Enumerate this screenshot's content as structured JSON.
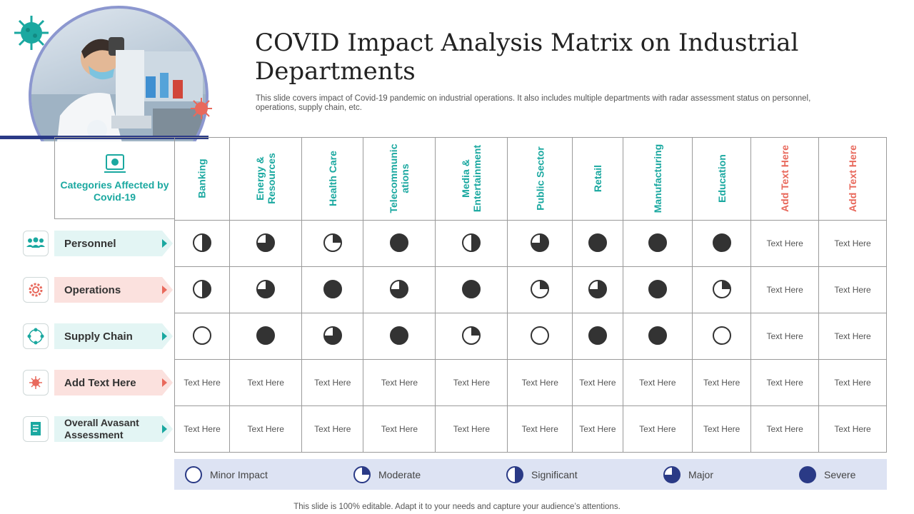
{
  "title": "COVID Impact Analysis Matrix on Industrial Departments",
  "subtitle": "This slide covers impact of Covid-19 pandemic on industrial operations. It also includes multiple departments with radar assessment status on personnel, operations, supply chain, etc.",
  "categories_label": "Categories Affected by Covid-19",
  "columns": [
    {
      "label": "Banking",
      "color": "#1aa8a0"
    },
    {
      "label": "Energy & Resources",
      "color": "#1aa8a0"
    },
    {
      "label": "Health Care",
      "color": "#1aa8a0"
    },
    {
      "label": "Telecommunic ations",
      "color": "#1aa8a0"
    },
    {
      "label": "Media & Entertainment",
      "color": "#1aa8a0"
    },
    {
      "label": "Public Sector",
      "color": "#1aa8a0"
    },
    {
      "label": "Retail",
      "color": "#1aa8a0"
    },
    {
      "label": "Manufacturing",
      "color": "#1aa8a0"
    },
    {
      "label": "Education",
      "color": "#1aa8a0"
    },
    {
      "label": "Add Text Here",
      "color": "#e8695c"
    },
    {
      "label": "Add Text Here",
      "color": "#e8695c"
    }
  ],
  "rows": [
    {
      "label": "Personnel",
      "icon": "people-icon",
      "cells": [
        0.5,
        0.75,
        0.25,
        1,
        0.5,
        0.75,
        1,
        1,
        1,
        "Text Here",
        "Text Here"
      ]
    },
    {
      "label": "Operations",
      "icon": "gear-icon",
      "cells": [
        0.5,
        0.75,
        1,
        0.75,
        1,
        0.25,
        0.75,
        1,
        0.25,
        "Text Here",
        "Text Here"
      ]
    },
    {
      "label": "Supply Chain",
      "icon": "network-icon",
      "cells": [
        0,
        1,
        0.75,
        1,
        0.25,
        0,
        1,
        1,
        0,
        "Text Here",
        "Text Here"
      ]
    },
    {
      "label": "Add  Text Here",
      "icon": "virus-icon",
      "cells": [
        "Text Here",
        "Text Here",
        "Text Here",
        "Text Here",
        "Text Here",
        "Text Here",
        "Text Here",
        "Text Here",
        "Text Here",
        "Text Here",
        "Text Here"
      ]
    },
    {
      "label": "Overall Avasant Assessment",
      "icon": "report-icon",
      "cells": [
        "Text Here",
        "Text Here",
        "Text Here",
        "Text Here",
        "Text Here",
        "Text Here",
        "Text Here",
        "Text Here",
        "Text Here",
        "Text Here",
        "Text Here"
      ]
    }
  ],
  "legend": [
    {
      "label": "Minor Impact",
      "level": 0
    },
    {
      "label": "Moderate",
      "level": 0.25
    },
    {
      "label": "Significant",
      "level": 0.5
    },
    {
      "label": "Major",
      "level": 0.75
    },
    {
      "label": "Severe",
      "level": 1
    }
  ],
  "footer": "This slide is 100% editable. Adapt it to your needs and capture your audience’s attentions.",
  "colors": {
    "teal": "#1aa8a0",
    "coral": "#e8695c",
    "navy": "#2a3a86",
    "harvey_dark": "#333333",
    "legend_bg": "#dde3f3"
  }
}
